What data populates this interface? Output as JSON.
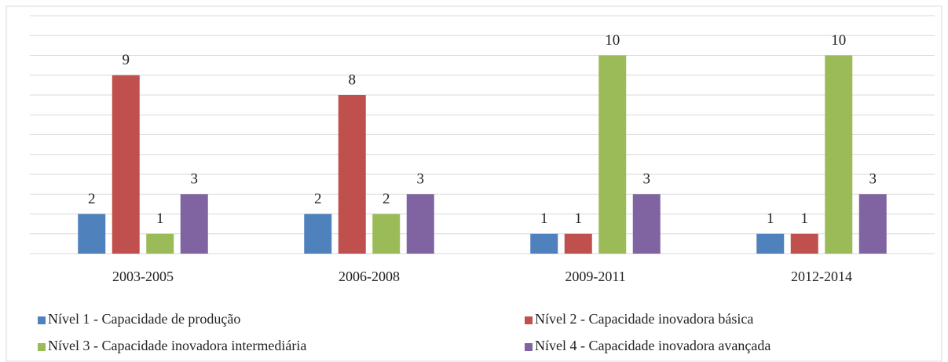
{
  "chart_data": {
    "type": "bar",
    "categories": [
      "2003-2005",
      "2006-2008",
      "2009-2011",
      "2012-2014"
    ],
    "series": [
      {
        "name": "Nível 1 - Capacidade de produção",
        "color": "#4f81bd",
        "values": [
          2,
          2,
          1,
          1
        ]
      },
      {
        "name": "Nível 2 - Capacidade inovadora básica",
        "color": "#c0504d",
        "values": [
          9,
          8,
          1,
          1
        ]
      },
      {
        "name": "Nível 3 - Capacidade inovadora intermediária",
        "color": "#9bbb59",
        "values": [
          1,
          2,
          10,
          10
        ]
      },
      {
        "name": "Nível 4 - Capacidade inovadora avançada",
        "color": "#8064a2",
        "values": [
          3,
          3,
          3,
          3
        ]
      }
    ],
    "ylim": [
      0,
      12
    ],
    "yticks": [
      0,
      1,
      2,
      3,
      4,
      5,
      6,
      7,
      8,
      9,
      10,
      11,
      12
    ],
    "grid": true
  }
}
